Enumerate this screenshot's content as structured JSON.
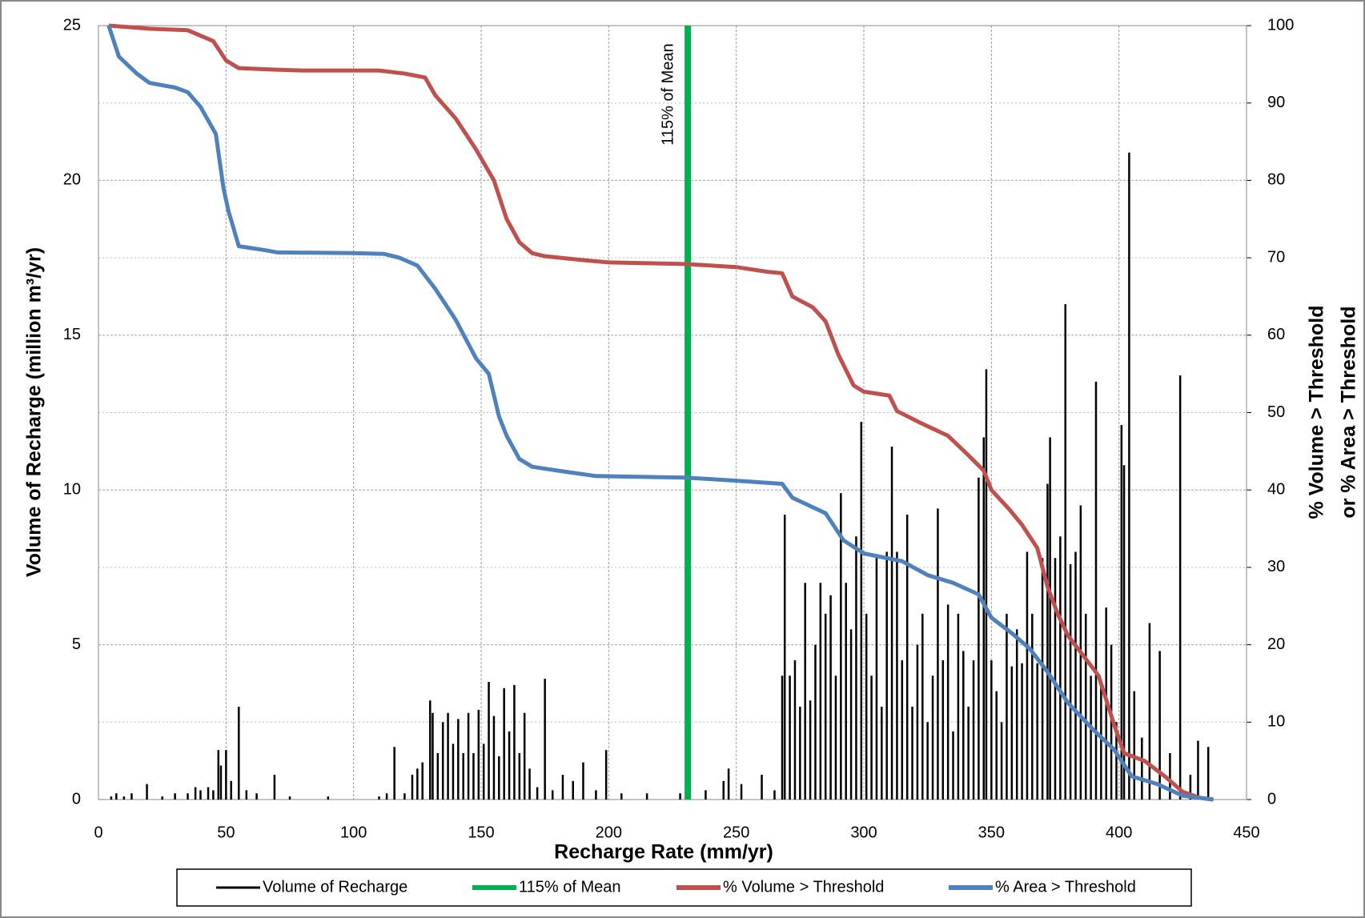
{
  "chart_data": {
    "type": "combo",
    "xlabel": "Recharge Rate (mm/yr)",
    "ylabel": "Volume of Recharge (million m³/yr)",
    "y2label": [
      "% Volume > Threshold",
      "or % Area > Threshold"
    ],
    "annotation": "115% of Mean",
    "xlim": [
      0,
      450
    ],
    "xticks": [
      0,
      50,
      100,
      150,
      200,
      250,
      300,
      350,
      400,
      450
    ],
    "ylim": [
      0,
      25
    ],
    "yticks": [
      0,
      5,
      10,
      15,
      20,
      25
    ],
    "y2lim": [
      0,
      100
    ],
    "y2ticks": [
      0,
      10,
      20,
      30,
      40,
      50,
      60,
      70,
      80,
      90,
      100
    ],
    "grid": true,
    "legend": "bottom",
    "series": [
      {
        "name": "Volume of Recharge",
        "color": "#000000",
        "kind": "spikes",
        "x": [
          5,
          7,
          10,
          13,
          19,
          25,
          30,
          35,
          38,
          40,
          43,
          45,
          47,
          48,
          50,
          52,
          55,
          58,
          62,
          69,
          75,
          90,
          110,
          113,
          116,
          120,
          123,
          125,
          127,
          130,
          131,
          133,
          135,
          137,
          139,
          141,
          143,
          145,
          147,
          149,
          151,
          153,
          155,
          157,
          159,
          161,
          163,
          165,
          167,
          169,
          172,
          175,
          178,
          182,
          186,
          190,
          195,
          199,
          205,
          215,
          228,
          238,
          245,
          247,
          252,
          260,
          265,
          268,
          269,
          271,
          273,
          275,
          277,
          279,
          281,
          283,
          285,
          287,
          289,
          291,
          293,
          295,
          297,
          299,
          301,
          303,
          305,
          307,
          309,
          311,
          313,
          315,
          317,
          319,
          321,
          323,
          325,
          327,
          329,
          331,
          333,
          335,
          337,
          339,
          341,
          343,
          345,
          347,
          348,
          350,
          352,
          354,
          356,
          358,
          360,
          362,
          364,
          366,
          368,
          370,
          372,
          373,
          375,
          377,
          379,
          381,
          383,
          385,
          387,
          389,
          391,
          393,
          395,
          397,
          399,
          401,
          402,
          404,
          406,
          409,
          412,
          416,
          420,
          424,
          428,
          431,
          435
        ],
        "values": [
          0.1,
          0.2,
          0.1,
          0.2,
          0.5,
          0.1,
          0.2,
          0.2,
          0.4,
          0.3,
          0.4,
          0.3,
          1.6,
          1.1,
          1.6,
          0.6,
          3.0,
          0.3,
          0.2,
          0.8,
          0.1,
          0.1,
          0.1,
          0.2,
          1.7,
          0.2,
          0.8,
          1.0,
          1.2,
          3.2,
          2.8,
          1.5,
          2.5,
          2.8,
          1.8,
          2.6,
          1.5,
          2.8,
          1.5,
          2.9,
          1.8,
          3.8,
          2.7,
          1.4,
          3.6,
          2.2,
          3.7,
          1.5,
          2.8,
          1.0,
          0.4,
          3.9,
          0.3,
          0.8,
          0.6,
          1.2,
          0.3,
          1.6,
          0.2,
          0.2,
          0.2,
          0.3,
          0.6,
          1.0,
          0.5,
          0.8,
          0.3,
          4.0,
          9.2,
          4.0,
          4.5,
          3.0,
          7.0,
          3.2,
          5.0,
          7.0,
          6.0,
          6.6,
          4.0,
          9.9,
          7.0,
          5.5,
          8.5,
          12.2,
          6.0,
          4.0,
          7.8,
          3.0,
          8.0,
          11.4,
          8.0,
          4.5,
          9.2,
          3.0,
          5.0,
          6.0,
          2.5,
          4.0,
          9.4,
          4.5,
          6.3,
          2.2,
          6.0,
          4.8,
          3.0,
          4.5,
          10.4,
          11.7,
          13.9,
          4.5,
          3.5,
          2.5,
          6.0,
          4.3,
          5.5,
          4.4,
          8.0,
          6.0,
          4.4,
          7.8,
          10.2,
          11.7,
          7.8,
          8.5,
          16.0,
          7.6,
          8.0,
          9.5,
          6.0,
          4.0,
          13.5,
          3.8,
          6.2,
          5.0,
          2.5,
          12.1,
          10.8,
          20.9,
          3.5,
          2.0,
          5.7,
          4.8,
          1.5,
          13.7,
          0.8,
          1.9,
          1.7
        ]
      },
      {
        "name": "115% of Mean",
        "color": "#00b050",
        "kind": "vline",
        "x": 231
      },
      {
        "name": "% Volume > Threshold",
        "color": "#c0504d",
        "kind": "line",
        "axis": "y2",
        "x": [
          4,
          20,
          35,
          45,
          50,
          55,
          70,
          80,
          110,
          120,
          128,
          132,
          140,
          148,
          155,
          160,
          165,
          170,
          175,
          190,
          200,
          230,
          250,
          262,
          268,
          272,
          280,
          285,
          290,
          296,
          300,
          310,
          313,
          322,
          333,
          340,
          347,
          350,
          357,
          362,
          368,
          372,
          376,
          380,
          386,
          392,
          398,
          402,
          410,
          418,
          425,
          432,
          437
        ],
        "values": [
          100,
          99.6,
          99.4,
          98,
          95.5,
          94.5,
          94.3,
          94.2,
          94.2,
          93.8,
          93.3,
          91,
          88,
          84,
          80,
          75,
          72,
          70.6,
          70.2,
          69.7,
          69.4,
          69.2,
          68.8,
          68.2,
          68,
          65,
          63.6,
          61.8,
          57.5,
          53.5,
          52.7,
          52.2,
          50.2,
          48.7,
          47,
          44.8,
          42.5,
          40,
          37.5,
          35.5,
          32.5,
          27.5,
          24,
          21.2,
          18.6,
          16,
          9.8,
          6,
          5,
          3,
          1,
          0.2,
          0
        ]
      },
      {
        "name": "% Area > Threshold",
        "color": "#4f81bd",
        "kind": "line",
        "axis": "y2",
        "x": [
          4,
          8,
          15,
          20,
          30,
          35,
          40,
          46,
          49,
          51,
          55,
          65,
          70,
          100,
          112,
          118,
          125,
          132,
          140,
          148,
          153,
          157,
          160,
          165,
          170,
          180,
          195,
          230,
          250,
          268,
          272,
          285,
          292,
          300,
          315,
          325,
          335,
          345,
          350,
          358,
          365,
          372,
          380,
          390,
          398,
          405,
          415,
          425,
          437
        ],
        "values": [
          100,
          96,
          93.8,
          92.6,
          92,
          91.4,
          89.5,
          86,
          79,
          76,
          71.5,
          71,
          70.7,
          70.6,
          70.5,
          70,
          69,
          66,
          62,
          57,
          55,
          49.5,
          47,
          44,
          43,
          42.5,
          41.8,
          41.6,
          41.2,
          40.8,
          39,
          37,
          33.5,
          31.8,
          30.8,
          29,
          28,
          26.5,
          23.5,
          21.5,
          19.5,
          16.5,
          12.5,
          9,
          6.5,
          3,
          2,
          0.5,
          0
        ]
      }
    ]
  }
}
